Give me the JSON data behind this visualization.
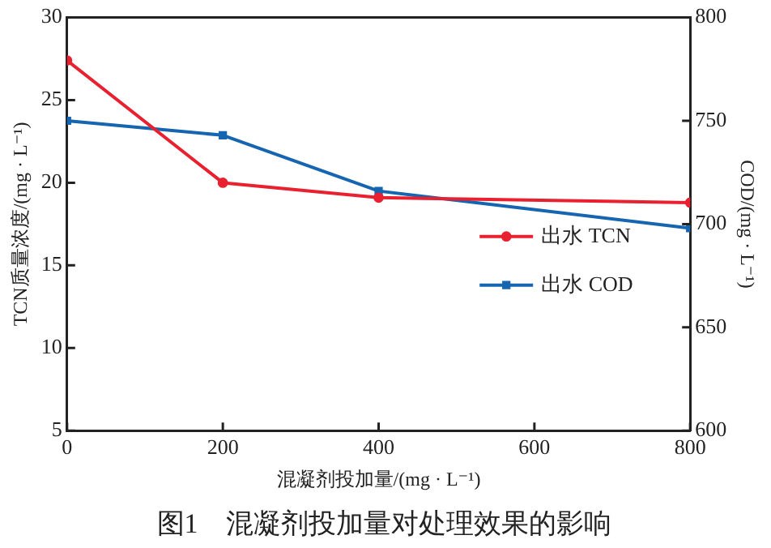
{
  "chart_data": {
    "type": "line",
    "title": "图1　混凝剂投加量对处理效果的影响",
    "xlabel": "混凝剂投加量/(mg · L⁻¹)",
    "ylabel": "TCN质量浓度/(mg · L⁻¹)",
    "y2label": "COD/(mg · L⁻¹)",
    "x": [
      0,
      200,
      400,
      800
    ],
    "series": [
      {
        "name": "出水 TCN",
        "color": "#e8202f",
        "marker": "circle",
        "values": [
          27.4,
          20.0,
          19.1,
          18.8
        ]
      },
      {
        "name": "出水 COD",
        "color": "#1565b0",
        "marker": "square",
        "axis": "y2",
        "values": [
          750,
          743,
          716,
          698
        ]
      }
    ],
    "xlim": [
      0,
      800
    ],
    "xticks": [
      0,
      200,
      400,
      600,
      800
    ],
    "ylim": [
      5,
      30
    ],
    "yticks": [
      5,
      10,
      15,
      20,
      25,
      30
    ],
    "y2lim": [
      600,
      800
    ],
    "y2ticks": [
      600,
      650,
      700,
      750,
      800
    ],
    "grid": false,
    "legend": "right",
    "line_style": "solid"
  }
}
